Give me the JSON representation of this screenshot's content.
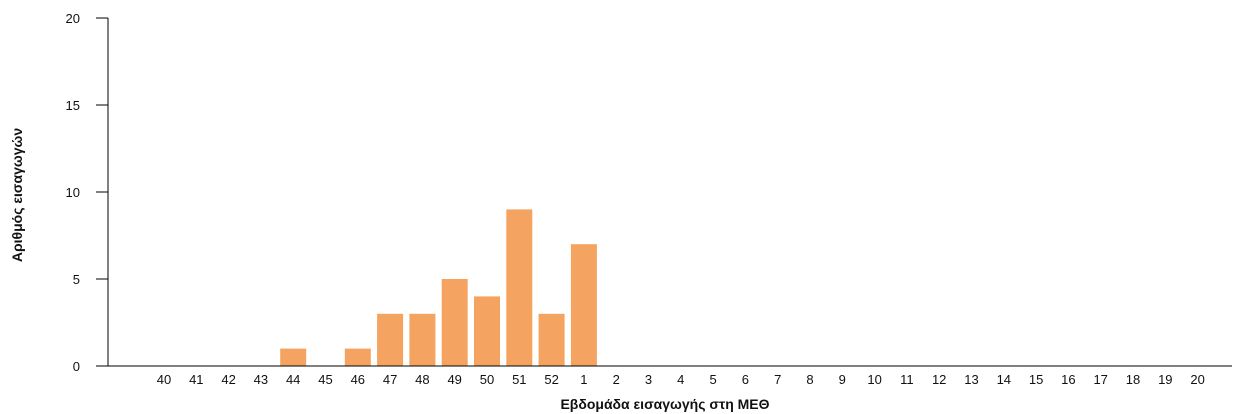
{
  "chart_data": {
    "type": "bar",
    "title": "",
    "xlabel": "Εβδομάδα εισαγωγής στη ΜΕΘ",
    "ylabel": "Αριθμός εισαγωγών",
    "categories": [
      "40",
      "41",
      "42",
      "43",
      "44",
      "45",
      "46",
      "47",
      "48",
      "49",
      "50",
      "51",
      "52",
      "1",
      "2",
      "3",
      "4",
      "5",
      "6",
      "7",
      "8",
      "9",
      "10",
      "11",
      "12",
      "13",
      "14",
      "15",
      "16",
      "17",
      "18",
      "19",
      "20"
    ],
    "values": [
      0,
      0,
      0,
      0,
      1,
      0,
      1,
      3,
      3,
      5,
      4,
      9,
      3,
      7,
      0,
      0,
      0,
      0,
      0,
      0,
      0,
      0,
      0,
      0,
      0,
      0,
      0,
      0,
      0,
      0,
      0,
      0,
      0
    ],
    "ylim": [
      0,
      20
    ],
    "yticks": [
      "0",
      "5",
      "10",
      "15",
      "20"
    ],
    "grid": false,
    "legend": "none",
    "bar_color": "#F4A460",
    "axis_color": "#000000"
  }
}
